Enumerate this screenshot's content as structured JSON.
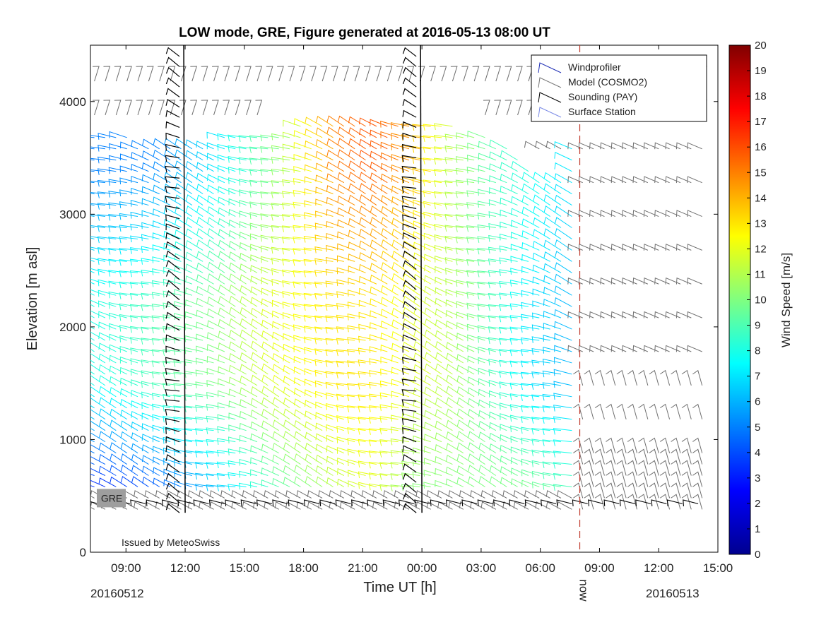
{
  "chart_data": {
    "type": "wind-barb-profile",
    "title": "LOW mode, GRE, Figure generated at 2016-05-13 08:00 UT",
    "xlabel": "Time UT [h]",
    "ylabel": "Elevation [m asl]",
    "colorbar_label": "Wind Speed [m/s]",
    "x_ticks": [
      "09:00",
      "12:00",
      "15:00",
      "18:00",
      "21:00",
      "00:00",
      "03:00",
      "06:00",
      "09:00",
      "12:00",
      "15:00"
    ],
    "x_tick_hours": [
      9,
      12,
      15,
      18,
      21,
      24,
      27,
      30,
      33,
      36,
      39
    ],
    "xlim_hours": [
      7.2,
      39
    ],
    "y_ticks": [
      0,
      1000,
      2000,
      3000,
      4000
    ],
    "ylim": [
      0,
      4500
    ],
    "colorbar_ticks": [
      0,
      1,
      2,
      3,
      4,
      5,
      6,
      7,
      8,
      9,
      10,
      11,
      12,
      13,
      14,
      15,
      16,
      17,
      18,
      19,
      20
    ],
    "colorbar_range": [
      0,
      20
    ],
    "date_labels": [
      "20160512",
      "20160513"
    ],
    "now_label": "now",
    "now_hour": 32,
    "station_label": "GRE",
    "station_elevation": 480,
    "issued_by": "Issued by MeteoSwiss",
    "legend": {
      "position": "top-right",
      "entries": [
        {
          "label": "Windprofiler",
          "color": "#1f2fb5"
        },
        {
          "label": "Model (COSMO2)",
          "color": "#777777"
        },
        {
          "label": "Sounding (PAY)",
          "color": "#000000"
        },
        {
          "label": "Surface Station",
          "color": "#7a8ae6"
        }
      ]
    },
    "sounding_hours": [
      12,
      24
    ],
    "windprofiler_hours": [
      7.3,
      31.8
    ],
    "windprofiler_top_profile": [
      [
        7.5,
        3700
      ],
      [
        12,
        3650
      ],
      [
        15,
        3700
      ],
      [
        18,
        3800
      ],
      [
        21,
        3850
      ],
      [
        24,
        3850
      ],
      [
        27,
        3750
      ],
      [
        29,
        3550
      ],
      [
        30,
        3300
      ],
      [
        31,
        3300
      ],
      [
        31.8,
        3700
      ]
    ],
    "speed_field_samples": [
      {
        "hour": 8,
        "speed_low": 3,
        "speed_mid": 8,
        "speed_high": 5
      },
      {
        "hour": 11,
        "speed_low": 4,
        "speed_mid": 9,
        "speed_high": 5
      },
      {
        "hour": 14,
        "speed_low": 6,
        "speed_mid": 10,
        "speed_high": 7
      },
      {
        "hour": 17,
        "speed_low": 9,
        "speed_mid": 12,
        "speed_high": 10
      },
      {
        "hour": 20,
        "speed_low": 11,
        "speed_mid": 13,
        "speed_high": 15
      },
      {
        "hour": 22,
        "speed_low": 12,
        "speed_mid": 13,
        "speed_high": 16
      },
      {
        "hour": 24,
        "speed_low": 10,
        "speed_mid": 12,
        "speed_high": 14
      },
      {
        "hour": 26,
        "speed_low": 10,
        "speed_mid": 11,
        "speed_high": 11
      },
      {
        "hour": 28,
        "speed_low": 10,
        "speed_mid": 9,
        "speed_high": 9
      },
      {
        "hour": 30,
        "speed_low": 10,
        "speed_mid": 7,
        "speed_high": 8
      },
      {
        "hour": 31.8,
        "speed_low": 9,
        "speed_mid": 6,
        "speed_high": 7
      }
    ]
  }
}
